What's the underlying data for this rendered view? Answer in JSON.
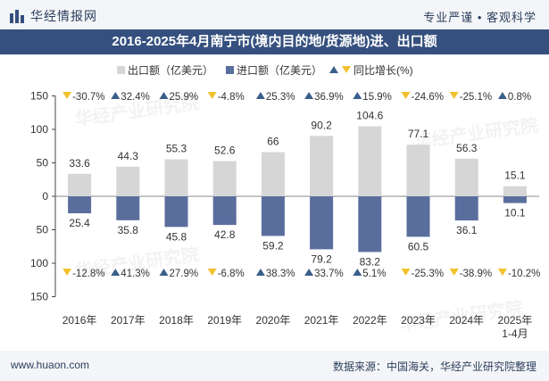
{
  "header": {
    "brand": "华经情报网",
    "tagline": "专业严谨 • 客观科学"
  },
  "title": "2016-2025年4月南宁市(境内目的地/货源地)进、出口额",
  "footer": {
    "website": "www.huaon.com",
    "source": "数据来源：中国海关，华经产业研究院整理"
  },
  "watermark": "华经产业研究院",
  "colors": {
    "export": "#d6d6d6",
    "import": "#5a6e9e",
    "up": "#3c5f8a",
    "down": "#f2c12e",
    "title_bg": "#35507e"
  },
  "chart_data": {
    "type": "bar",
    "categories": [
      "2016年",
      "2017年",
      "2018年",
      "2019年",
      "2020年",
      "2021年",
      "2022年",
      "2023年",
      "2024年",
      "2025年 1-4月"
    ],
    "series": [
      {
        "name": "出口额（亿美元）",
        "values": [
          33.6,
          44.3,
          55.3,
          52.6,
          66,
          90.2,
          104.6,
          77.1,
          56.3,
          15.1
        ]
      },
      {
        "name": "进口额（亿美元）",
        "values": [
          25.4,
          35.8,
          45.8,
          42.8,
          59.2,
          79.2,
          83.2,
          60.5,
          36.1,
          10.1
        ]
      }
    ],
    "export_growth": [
      "-30.7%",
      "32.4%",
      "25.9%",
      "-4.8%",
      "25.3%",
      "36.9%",
      "15.9%",
      "-24.6%",
      "-25.1%",
      "0.8%"
    ],
    "import_growth": [
      "-12.8%",
      "41.3%",
      "27.9%",
      "-6.8%",
      "38.3%",
      "33.7%",
      "5.1%",
      "-25.3%",
      "-38.9%",
      "-10.2%"
    ],
    "legend_growth": "同比增长(%)",
    "yticks": [
      "150",
      "100",
      "50",
      "0",
      "50",
      "100",
      "150"
    ],
    "ylim": [
      -150,
      150
    ],
    "legend_position": "top"
  }
}
